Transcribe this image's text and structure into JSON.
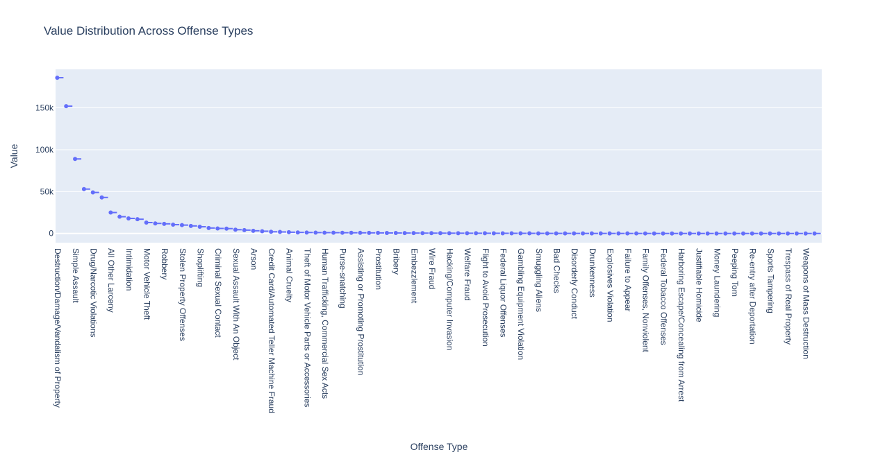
{
  "chart_data": {
    "type": "box",
    "title": "Value Distribution Across Offense Types",
    "x_label": "Offense Type",
    "y_label": "Value",
    "color": "#636efa",
    "grid": true,
    "categories": [
      "Destruction/Damage/Vandalism of Property",
      null,
      "Simple Assault",
      null,
      "Drug/Narcotic Violations",
      null,
      "All Other Larceny",
      null,
      "Intimidation",
      null,
      "Motor Vehicle Theft",
      null,
      "Robbery",
      null,
      "Stolen Property Offenses",
      null,
      "Shoplifting",
      null,
      "Criminal Sexual Contact",
      null,
      "Sexual Assault With An Object",
      null,
      "Arson",
      null,
      "Credit Card/Automated Teller Machine Fraud",
      null,
      "Animal Cruelty",
      null,
      "Theft of Motor Vehicle Parts or Accessories",
      null,
      "Human Trafficking, Commercial Sex Acts",
      null,
      "Purse-snatching",
      null,
      "Assisting or Promoting Prostitution",
      null,
      "Prostitution",
      null,
      "Bribery",
      null,
      "Embezzlement",
      null,
      "Wire Fraud",
      null,
      "Hacking/Computer Invasion",
      null,
      "Welfare Fraud",
      null,
      "Flight to Avoid Prosecution",
      null,
      "Federal Liquor Offenses",
      null,
      "Gambling Equipment Violation",
      null,
      "Smuggling Aliens",
      null,
      "Bad Checks",
      null,
      "Disorderly Conduct",
      null,
      "Drunkenness",
      null,
      "Explosives Violation",
      null,
      "Failure to Appear",
      null,
      "Family Offenses, Nonviolent",
      null,
      "Federal Tobacco Offenses",
      null,
      "Harboring Escape/Concealing from Arrest",
      null,
      "Justifiable Homicide",
      null,
      "Money Laundering",
      null,
      "Peeping Tom",
      null,
      "Re-entry after Deportation",
      null,
      "Sports Tampering",
      null,
      "Trespass of Real Property",
      null,
      "Weapons of Mass Destruction",
      null
    ],
    "values": [
      186000,
      152000,
      89000,
      53000,
      49000,
      43000,
      25000,
      20000,
      18000,
      17000,
      13000,
      12000,
      11500,
      10500,
      10000,
      9000,
      8000,
      6500,
      6000,
      5800,
      4500,
      4000,
      3200,
      2700,
      2000,
      1800,
      1500,
      1200,
      1100,
      1000,
      950,
      900,
      850,
      800,
      750,
      700,
      650,
      600,
      550,
      500,
      450,
      400,
      380,
      350,
      320,
      300,
      280,
      260,
      240,
      220,
      200,
      180,
      160,
      140,
      120,
      100,
      90,
      80,
      70,
      60,
      50,
      45,
      40,
      35,
      30,
      25,
      20,
      18,
      16,
      14,
      12,
      10,
      9,
      8,
      7,
      6,
      5,
      4,
      3,
      3,
      2,
      2,
      1,
      1,
      1,
      1
    ],
    "ylim": [
      -11000,
      196000
    ],
    "yticks": [
      {
        "value": 0,
        "label": "0"
      },
      {
        "value": 50000,
        "label": "50k"
      },
      {
        "value": 100000,
        "label": "100k"
      },
      {
        "value": 150000,
        "label": "150k"
      }
    ]
  }
}
